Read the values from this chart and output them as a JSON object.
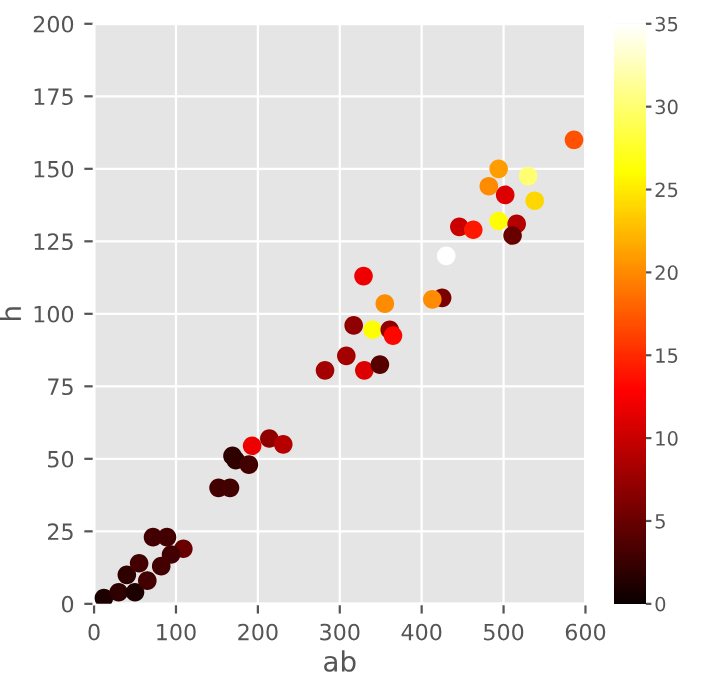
{
  "chart_data": {
    "type": "scatter",
    "xlabel": "ab",
    "ylabel": "h",
    "x": [
      586,
      494,
      530,
      482,
      502,
      538,
      446,
      463,
      494,
      516,
      511,
      430,
      425,
      413,
      329,
      355,
      317,
      340,
      361,
      365,
      308,
      282,
      330,
      349,
      214,
      231,
      193,
      169,
      173,
      189,
      152,
      166,
      72,
      89,
      109,
      94,
      82,
      12,
      30,
      50,
      65,
      40,
      55
    ],
    "values": [
      160,
      150,
      147.5,
      144,
      141,
      139,
      130,
      129,
      132,
      131,
      127,
      120,
      105.5,
      105,
      113,
      103.5,
      96,
      94.5,
      94.5,
      92.5,
      85.5,
      80.5,
      80.5,
      82.5,
      57,
      55,
      54.5,
      51,
      49.5,
      48,
      40,
      40,
      23,
      23,
      19,
      17,
      13,
      2,
      4,
      4,
      8,
      10,
      14
    ],
    "cvalues": [
      17,
      21,
      30,
      20,
      11,
      24,
      10,
      14,
      26,
      9,
      5,
      35,
      6,
      20,
      12,
      20,
      7,
      26,
      7,
      13,
      8,
      8,
      11,
      4,
      7,
      9,
      12,
      2,
      2,
      3,
      3,
      3,
      3,
      3,
      5,
      3,
      3,
      1,
      2,
      1,
      3,
      2,
      3
    ],
    "clim": [
      0,
      35
    ],
    "cticks": [
      0,
      5,
      10,
      15,
      20,
      25,
      30,
      35
    ],
    "xlim": [
      0,
      600
    ],
    "xticks": [
      0,
      100,
      200,
      300,
      400,
      500,
      600
    ],
    "ylim": [
      0,
      200
    ],
    "yticks": [
      0,
      25,
      50,
      75,
      100,
      125,
      150,
      175,
      200
    ],
    "grid": true,
    "marker": "circle"
  }
}
